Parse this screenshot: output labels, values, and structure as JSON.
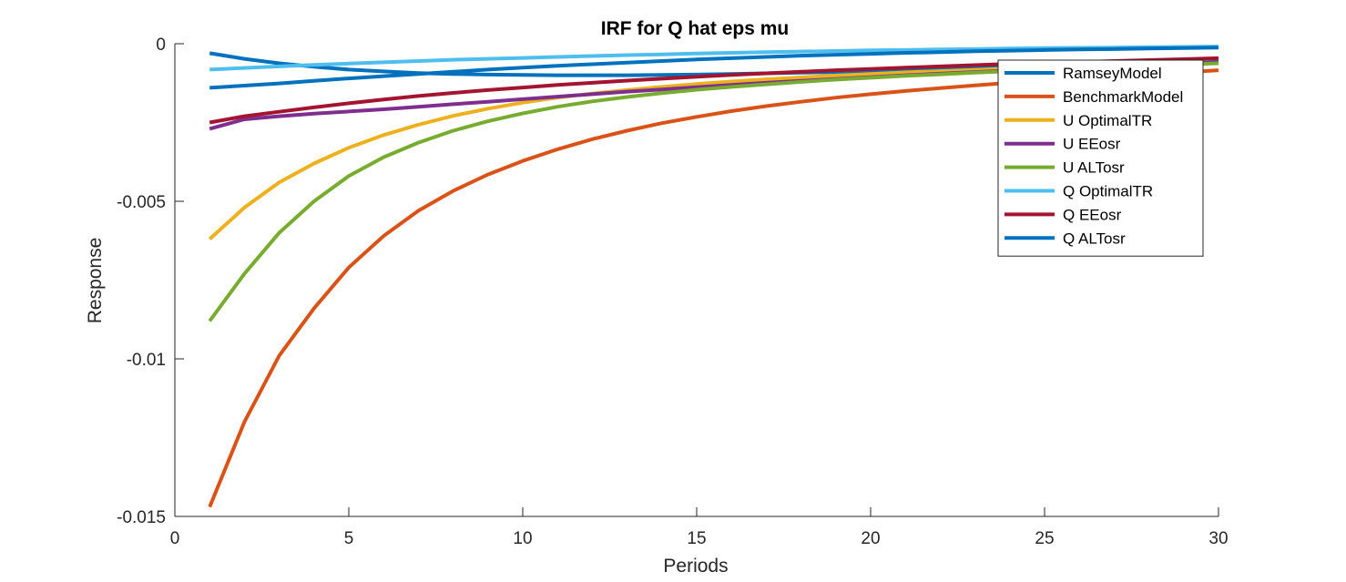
{
  "chart_data": {
    "type": "line",
    "title": "IRF for Q hat eps mu",
    "xlabel": "Periods",
    "ylabel": "Response",
    "xlim": [
      0,
      30
    ],
    "ylim": [
      -0.015,
      0
    ],
    "xticks": [
      0,
      5,
      10,
      15,
      20,
      25,
      30
    ],
    "xtick_labels": [
      "0",
      "5",
      "10",
      "15",
      "20",
      "25",
      "30"
    ],
    "yticks": [
      0,
      -0.005,
      -0.01,
      -0.015
    ],
    "ytick_labels": [
      "0",
      "-0.005",
      "-0.01",
      "-0.015"
    ],
    "grid": false,
    "legend_position": "top-right",
    "x": [
      1,
      2,
      3,
      4,
      5,
      6,
      7,
      8,
      9,
      10,
      11,
      12,
      13,
      14,
      15,
      16,
      17,
      18,
      19,
      20,
      21,
      22,
      23,
      24,
      25,
      26,
      27,
      28,
      29,
      30
    ],
    "series": [
      {
        "name": "RamseyModel",
        "color": "#0072BD",
        "values": [
          -0.0003,
          -0.00048,
          -0.00062,
          -0.00073,
          -0.00082,
          -0.00088,
          -0.00093,
          -0.00096,
          -0.00098,
          -0.00099,
          -0.001,
          -0.001,
          -0.001,
          -0.00099,
          -0.00098,
          -0.00096,
          -0.00094,
          -0.00092,
          -0.0009,
          -0.00087,
          -0.00084,
          -0.00081,
          -0.00078,
          -0.00075,
          -0.00072,
          -0.00069,
          -0.00066,
          -0.00063,
          -0.0006,
          -0.00057
        ]
      },
      {
        "name": "BenchmarkModel",
        "color": "#D95319",
        "values": [
          -0.0147,
          -0.012,
          -0.0099,
          -0.0084,
          -0.0071,
          -0.0061,
          -0.0053,
          -0.00467,
          -0.00415,
          -0.00372,
          -0.00335,
          -0.00303,
          -0.00276,
          -0.00252,
          -0.00232,
          -0.00214,
          -0.00198,
          -0.00184,
          -0.00171,
          -0.0016,
          -0.0015,
          -0.00141,
          -0.00132,
          -0.00124,
          -0.00117,
          -0.0011,
          -0.00103,
          -0.00097,
          -0.00091,
          -0.00084
        ]
      },
      {
        "name": "U OptimalTR",
        "color": "#EDB120",
        "values": [
          -0.0062,
          -0.0052,
          -0.0044,
          -0.0038,
          -0.0033,
          -0.0029,
          -0.00257,
          -0.00229,
          -0.00206,
          -0.00187,
          -0.00171,
          -0.00158,
          -0.00147,
          -0.00137,
          -0.00128,
          -0.0012,
          -0.00113,
          -0.00107,
          -0.00101,
          -0.00096,
          -0.00091,
          -0.00087,
          -0.00083,
          -0.00079,
          -0.00075,
          -0.00071,
          -0.00068,
          -0.00065,
          -0.00062,
          -0.00059
        ]
      },
      {
        "name": "U EEosr",
        "color": "#7E2F8E",
        "values": [
          -0.0027,
          -0.0024,
          -0.0023,
          -0.00222,
          -0.00215,
          -0.00208,
          -0.002,
          -0.00192,
          -0.00184,
          -0.00176,
          -0.00168,
          -0.0016,
          -0.00152,
          -0.00145,
          -0.00138,
          -0.00131,
          -0.00124,
          -0.00118,
          -0.00112,
          -0.00106,
          -0.001,
          -0.00095,
          -0.0009,
          -0.00085,
          -0.0008,
          -0.00075,
          -0.00071,
          -0.00067,
          -0.00063,
          -0.00059
        ]
      },
      {
        "name": "U ALTosr",
        "color": "#77AC30",
        "values": [
          -0.0088,
          -0.0073,
          -0.006,
          -0.005,
          -0.0042,
          -0.0036,
          -0.00314,
          -0.00276,
          -0.00246,
          -0.00221,
          -0.002,
          -0.00183,
          -0.00169,
          -0.00157,
          -0.00146,
          -0.00137,
          -0.00129,
          -0.00121,
          -0.00114,
          -0.00108,
          -0.00102,
          -0.00097,
          -0.00092,
          -0.00087,
          -0.00082,
          -0.00078,
          -0.00074,
          -0.0007,
          -0.00066,
          -0.00062
        ]
      },
      {
        "name": "Q OptimalTR",
        "color": "#4DBEEE",
        "values": [
          -0.00082,
          -0.00077,
          -0.00072,
          -0.00067,
          -0.00063,
          -0.00059,
          -0.00055,
          -0.00051,
          -0.00048,
          -0.00045,
          -0.00042,
          -0.00039,
          -0.00036,
          -0.00034,
          -0.00031,
          -0.00029,
          -0.00027,
          -0.00025,
          -0.00023,
          -0.00021,
          -0.0002,
          -0.00018,
          -0.00017,
          -0.00015,
          -0.00014,
          -0.00013,
          -0.00012,
          -0.00011,
          -0.0001,
          -9e-05
        ]
      },
      {
        "name": "Q EEosr",
        "color": "#A2142F",
        "values": [
          -0.0025,
          -0.0023,
          -0.00216,
          -0.00202,
          -0.00189,
          -0.00177,
          -0.00166,
          -0.00156,
          -0.00147,
          -0.00139,
          -0.00131,
          -0.00124,
          -0.00117,
          -0.00111,
          -0.00105,
          -0.00099,
          -0.00094,
          -0.00089,
          -0.00084,
          -0.0008,
          -0.00076,
          -0.00072,
          -0.00068,
          -0.00064,
          -0.00061,
          -0.00058,
          -0.00055,
          -0.00052,
          -0.00049,
          -0.00046
        ]
      },
      {
        "name": "Q ALTosr",
        "color": "#0072BD",
        "values": [
          -0.0014,
          -0.00133,
          -0.00126,
          -0.00118,
          -0.0011,
          -0.00103,
          -0.00096,
          -0.00089,
          -0.00082,
          -0.00076,
          -0.0007,
          -0.00065,
          -0.0006,
          -0.00055,
          -0.0005,
          -0.00046,
          -0.00042,
          -0.00038,
          -0.00035,
          -0.00032,
          -0.00029,
          -0.00027,
          -0.00024,
          -0.00022,
          -0.0002,
          -0.00018,
          -0.00017,
          -0.00015,
          -0.00014,
          -0.00012
        ]
      }
    ]
  }
}
